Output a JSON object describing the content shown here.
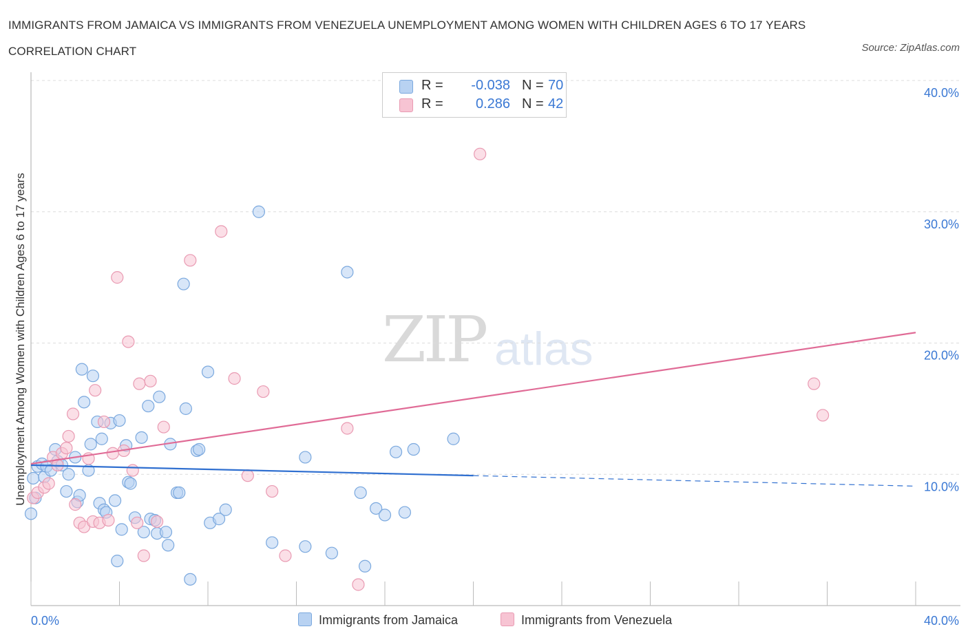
{
  "title": "IMMIGRANTS FROM JAMAICA VS IMMIGRANTS FROM VENEZUELA UNEMPLOYMENT AMONG WOMEN WITH CHILDREN AGES 6 TO 17 YEARS CORRELATION CHART",
  "source": "Source: ZipAtlas.com",
  "watermark": {
    "zip": "ZIP",
    "atlas": "atlas"
  },
  "legend": {
    "jamaica": {
      "r_label": "R =",
      "r_value": "-0.038",
      "n_label": "N =",
      "n_value": "70"
    },
    "venezuela": {
      "r_label": "R =",
      "r_value": "0.286",
      "n_label": "N =",
      "n_value": "42"
    }
  },
  "bottom_legend": {
    "jamaica": "Immigrants from Jamaica",
    "venezuela": "Immigrants from Venezuela"
  },
  "colors": {
    "jamaica_fill": "#b8d2f2",
    "jamaica_stroke": "#7aa8de",
    "jamaica_line": "#2f6fd0",
    "venezuela_fill": "#f7c4d3",
    "venezuela_stroke": "#e99ab2",
    "venezuela_line": "#e06b96",
    "tick_label": "#3a78d4"
  },
  "chart_data": {
    "type": "scatter",
    "title": "IMMIGRANTS FROM JAMAICA VS IMMIGRANTS FROM VENEZUELA UNEMPLOYMENT AMONG WOMEN WITH CHILDREN AGES 6 TO 17 YEARS CORRELATION CHART",
    "xlabel": "",
    "ylabel": "Unemployment Among Women with Children Ages 6 to 17 years",
    "xlim": [
      0,
      40
    ],
    "ylim": [
      0,
      40
    ],
    "x_tick_labels": [
      "0.0%",
      "40.0%"
    ],
    "y_ticks": [
      10,
      20,
      30,
      40
    ],
    "y_tick_labels": [
      "10.0%",
      "20.0%",
      "30.0%",
      "40.0%"
    ],
    "grid": true,
    "legend_position": "top-center",
    "series": [
      {
        "name": "Immigrants from Jamaica",
        "R": -0.038,
        "N": 70,
        "trend": {
          "x": [
            0,
            20
          ],
          "y": [
            10.7,
            9.9
          ],
          "dashed_extension_to": [
            40,
            9.1
          ]
        },
        "points": [
          [
            0.1,
            9.7
          ],
          [
            0.3,
            10.6
          ],
          [
            0.5,
            10.8
          ],
          [
            0.6,
            9.8
          ],
          [
            0.7,
            10.6
          ],
          [
            0.9,
            10.3
          ],
          [
            1.1,
            11.9
          ],
          [
            1.2,
            11.0
          ],
          [
            1.4,
            10.7
          ],
          [
            1.6,
            8.7
          ],
          [
            1.7,
            10.0
          ],
          [
            2.0,
            11.3
          ],
          [
            2.1,
            7.9
          ],
          [
            2.2,
            8.4
          ],
          [
            2.3,
            18.0
          ],
          [
            2.4,
            15.5
          ],
          [
            2.6,
            10.3
          ],
          [
            2.7,
            12.3
          ],
          [
            2.8,
            17.5
          ],
          [
            3.0,
            14.0
          ],
          [
            3.1,
            7.8
          ],
          [
            3.2,
            12.7
          ],
          [
            3.3,
            7.3
          ],
          [
            3.4,
            7.1
          ],
          [
            3.6,
            13.9
          ],
          [
            3.8,
            8.0
          ],
          [
            3.9,
            3.4
          ],
          [
            4.0,
            14.1
          ],
          [
            4.1,
            5.8
          ],
          [
            4.3,
            12.2
          ],
          [
            4.4,
            9.4
          ],
          [
            4.5,
            9.3
          ],
          [
            4.7,
            6.7
          ],
          [
            5.0,
            12.8
          ],
          [
            5.1,
            5.6
          ],
          [
            5.3,
            15.2
          ],
          [
            5.4,
            6.6
          ],
          [
            5.6,
            6.5
          ],
          [
            5.7,
            5.5
          ],
          [
            5.8,
            15.9
          ],
          [
            6.1,
            5.6
          ],
          [
            6.2,
            4.6
          ],
          [
            6.3,
            12.3
          ],
          [
            6.6,
            8.6
          ],
          [
            6.7,
            8.6
          ],
          [
            6.9,
            24.5
          ],
          [
            7.0,
            15.0
          ],
          [
            7.2,
            2.0
          ],
          [
            7.5,
            11.8
          ],
          [
            7.6,
            11.9
          ],
          [
            8.0,
            17.8
          ],
          [
            8.1,
            6.3
          ],
          [
            8.5,
            6.6
          ],
          [
            8.8,
            7.3
          ],
          [
            10.3,
            30.0
          ],
          [
            10.9,
            4.8
          ],
          [
            12.4,
            4.5
          ],
          [
            12.4,
            11.3
          ],
          [
            13.6,
            4.0
          ],
          [
            14.3,
            25.4
          ],
          [
            14.9,
            8.6
          ],
          [
            15.1,
            3.0
          ],
          [
            15.6,
            7.4
          ],
          [
            16.0,
            6.9
          ],
          [
            16.5,
            11.7
          ],
          [
            16.9,
            7.1
          ],
          [
            17.3,
            11.9
          ],
          [
            19.1,
            12.7
          ],
          [
            0.0,
            7.0
          ],
          [
            0.2,
            8.2
          ]
        ]
      },
      {
        "name": "Immigrants from Venezuela",
        "R": 0.286,
        "N": 42,
        "trend": {
          "x": [
            0,
            40
          ],
          "y": [
            10.8,
            20.8
          ]
        },
        "points": [
          [
            0.1,
            8.2
          ],
          [
            0.3,
            8.6
          ],
          [
            0.6,
            9.0
          ],
          [
            0.8,
            9.3
          ],
          [
            1.0,
            11.3
          ],
          [
            1.2,
            10.7
          ],
          [
            1.4,
            11.6
          ],
          [
            1.6,
            12.0
          ],
          [
            1.7,
            12.9
          ],
          [
            1.9,
            14.6
          ],
          [
            2.0,
            7.7
          ],
          [
            2.2,
            6.3
          ],
          [
            2.4,
            6.0
          ],
          [
            2.6,
            11.2
          ],
          [
            2.8,
            6.4
          ],
          [
            2.9,
            16.4
          ],
          [
            3.1,
            6.3
          ],
          [
            3.3,
            14.0
          ],
          [
            3.5,
            6.5
          ],
          [
            3.7,
            11.6
          ],
          [
            3.9,
            25.0
          ],
          [
            4.2,
            11.8
          ],
          [
            4.4,
            20.1
          ],
          [
            4.6,
            10.3
          ],
          [
            4.8,
            6.3
          ],
          [
            4.9,
            16.9
          ],
          [
            5.1,
            3.8
          ],
          [
            5.4,
            17.1
          ],
          [
            5.7,
            6.4
          ],
          [
            6.0,
            13.6
          ],
          [
            7.2,
            26.3
          ],
          [
            8.6,
            28.5
          ],
          [
            9.2,
            17.3
          ],
          [
            9.8,
            9.9
          ],
          [
            10.5,
            16.3
          ],
          [
            10.9,
            8.7
          ],
          [
            11.5,
            3.8
          ],
          [
            14.3,
            13.5
          ],
          [
            14.8,
            1.6
          ],
          [
            20.3,
            34.4
          ],
          [
            35.4,
            16.9
          ],
          [
            35.8,
            14.5
          ]
        ]
      }
    ]
  }
}
